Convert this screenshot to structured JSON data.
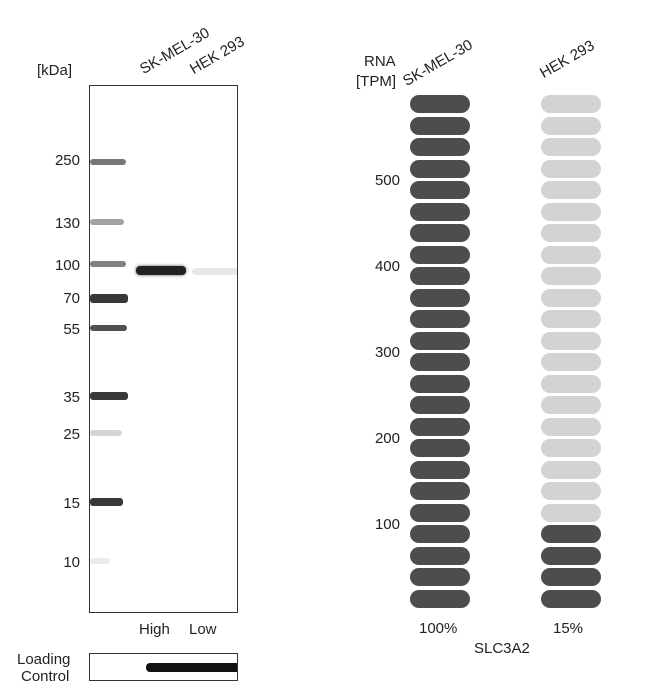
{
  "western_blot": {
    "unit_label": "[kDa]",
    "lanes": [
      {
        "name": "SK-MEL-30",
        "intensity_label": "High"
      },
      {
        "name": "HEK 293",
        "intensity_label": "Low"
      }
    ],
    "markers": [
      "250",
      "130",
      "100",
      "70",
      "55",
      "35",
      "25",
      "15",
      "10"
    ],
    "loading_control_line1": "Loading",
    "loading_control_line2": "Control"
  },
  "rna": {
    "title_line1": "RNA",
    "title_line2": "[TPM]",
    "gene": "SLC3A2",
    "axis_ticks": [
      "500",
      "400",
      "300",
      "200",
      "100"
    ],
    "colors": {
      "filled": "#4d4d4d",
      "empty": "#d3d3d3"
    },
    "samples": [
      {
        "name": "SK-MEL-30",
        "percent": "100%",
        "filled_units": 24,
        "total_units": 24
      },
      {
        "name": "HEK 293",
        "percent": "15%",
        "filled_units": 4,
        "total_units": 24
      }
    ]
  }
}
